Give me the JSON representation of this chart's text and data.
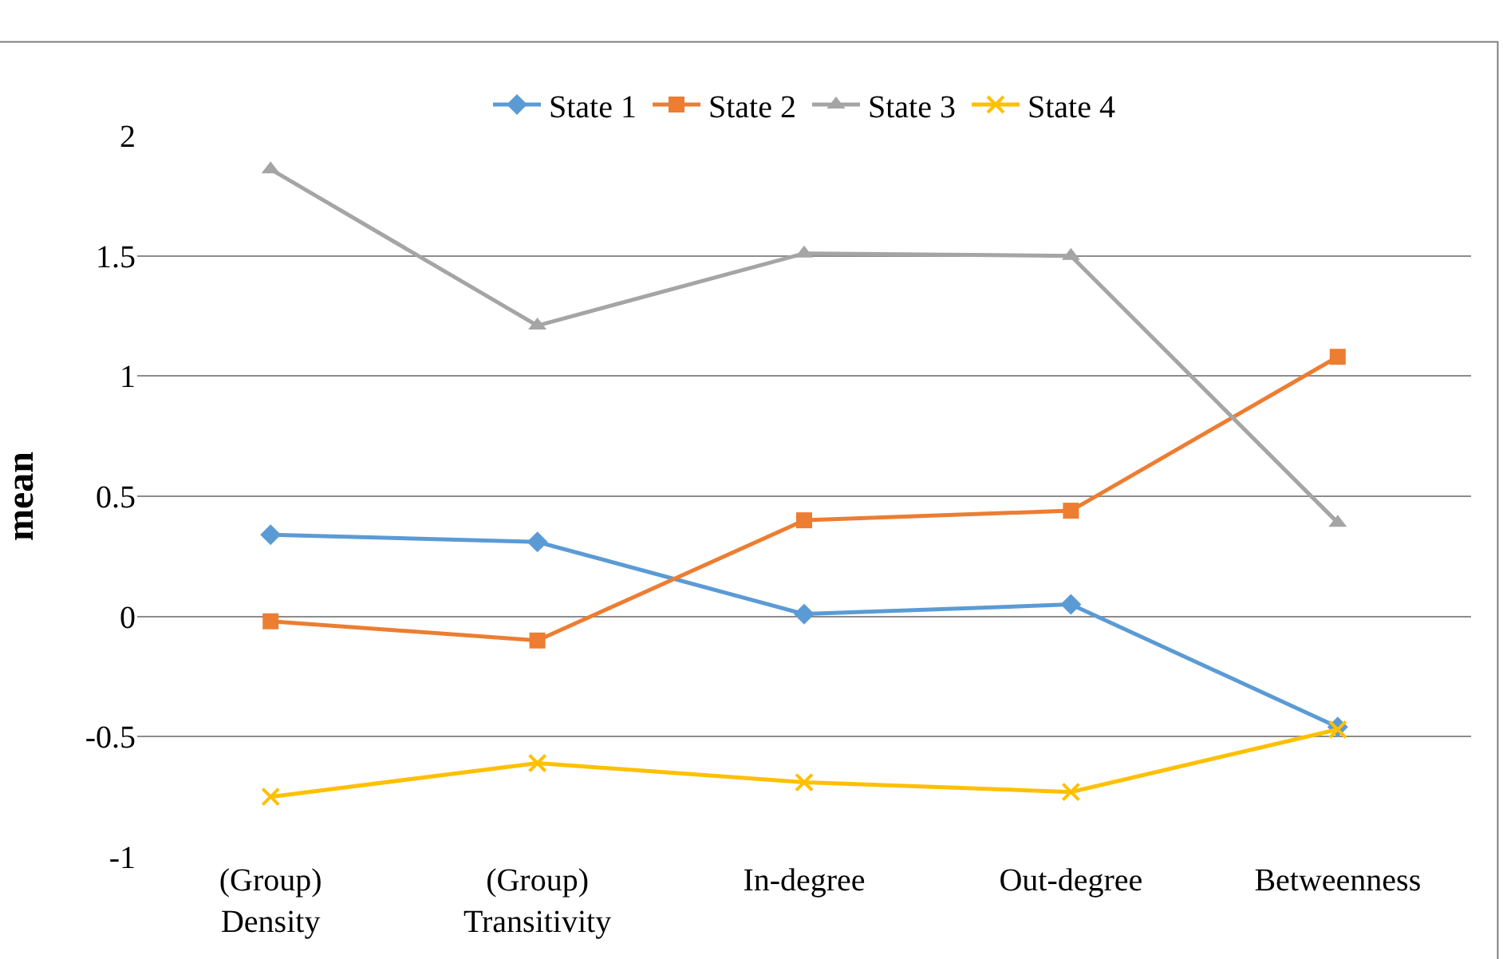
{
  "chart_data": {
    "type": "line",
    "ylabel": "mean",
    "categories": [
      "(Group)\nDensity",
      "(Group)\nTransitivity",
      "In-degree",
      "Out-degree",
      "Betweenness"
    ],
    "series": [
      {
        "name": "State 1",
        "color": "#5b9bd5",
        "marker": "diamond",
        "values": [
          0.34,
          0.31,
          0.01,
          0.05,
          -0.46
        ]
      },
      {
        "name": "State 2",
        "color": "#ed7d31",
        "marker": "square",
        "values": [
          -0.02,
          -0.1,
          0.4,
          0.44,
          1.08
        ]
      },
      {
        "name": "State 3",
        "color": "#a5a5a5",
        "marker": "triangle",
        "values": [
          1.86,
          1.21,
          1.51,
          1.5,
          0.39
        ]
      },
      {
        "name": "State 4",
        "color": "#ffc000",
        "marker": "cross",
        "values": [
          -0.75,
          -0.61,
          -0.69,
          -0.73,
          -0.47
        ]
      }
    ],
    "ylim": [
      -1,
      2
    ],
    "yticks": [
      -1,
      -0.5,
      0,
      0.5,
      1,
      1.5,
      2
    ],
    "grid": "y",
    "legend": "top"
  }
}
